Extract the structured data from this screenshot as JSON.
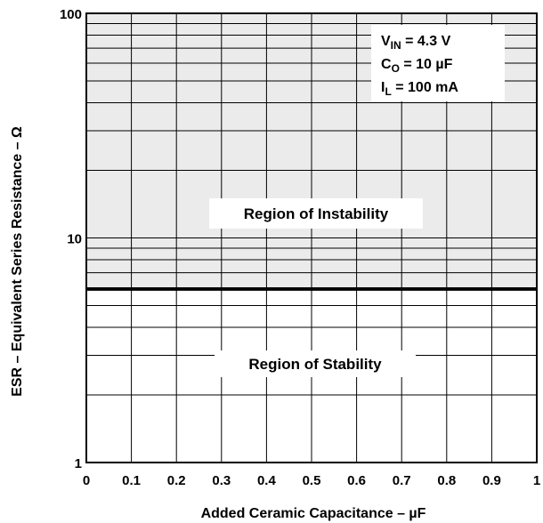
{
  "chart_data": {
    "type": "area",
    "xlabel": "Added Ceramic Capacitance – µF",
    "ylabel": "ESR – Equivalent Series Resistance – Ω",
    "x_ticks": [
      0,
      0.1,
      0.2,
      0.3,
      0.4,
      0.5,
      0.6,
      0.7,
      0.8,
      0.9,
      1
    ],
    "x_tick_labels": [
      "0",
      "0.1",
      "0.2",
      "0.3",
      "0.4",
      "0.5",
      "0.6",
      "0.7",
      "0.8",
      "0.9",
      "1"
    ],
    "xlim": [
      0,
      1
    ],
    "ylim": [
      1,
      100
    ],
    "yscale": "log",
    "y_tick_labels": [
      "1",
      "10",
      "100"
    ],
    "y_ticks": [
      1,
      10,
      100
    ],
    "grid": true,
    "boundary": {
      "x": [
        0,
        1
      ],
      "y": [
        5.9,
        5.9
      ]
    },
    "regions": [
      {
        "label": "Region of Instability",
        "from": 5.9,
        "to": 100,
        "fill": "#ebebeb"
      },
      {
        "label": "Region of Stability",
        "from": 1,
        "to": 5.9,
        "fill": "#ffffff"
      }
    ],
    "conditions": [
      {
        "main": "V",
        "sub": "IN",
        "rest": " = 4.3 V"
      },
      {
        "main": "C",
        "sub": "O",
        "rest": " = 10 µF"
      },
      {
        "main": "I",
        "sub": "L",
        "rest": " = 100 mA"
      }
    ]
  }
}
